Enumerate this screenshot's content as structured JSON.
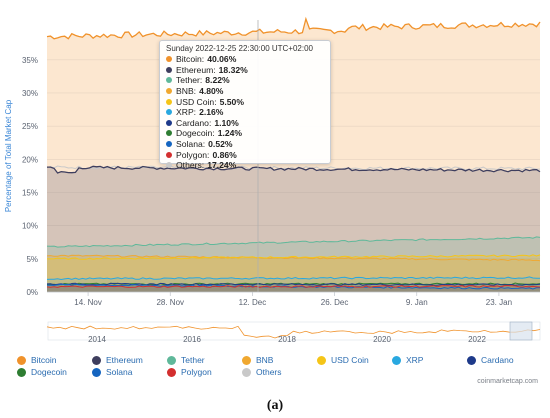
{
  "chart_data": {
    "type": "area",
    "ylabel": "Percentage of Total Market Cap",
    "ylim": [
      0,
      40
    ],
    "yticks": [
      "0%",
      "5%",
      "10%",
      "15%",
      "20%",
      "25%",
      "30%",
      "35%"
    ],
    "x_tick_labels": [
      "14. Nov",
      "28. Nov",
      "12. Dec",
      "26. Dec",
      "9. Jan",
      "23. Jan"
    ],
    "x_range": [
      "2022-11-07",
      "2023-01-30"
    ],
    "stacked": true,
    "series": [
      {
        "name": "Others",
        "color": "#c9c9c9",
        "values_start_end": [
          18.8,
          18.6
        ]
      },
      {
        "name": "Polygon",
        "color": "#d32f2f",
        "values_start_end": [
          0.8,
          0.86
        ]
      },
      {
        "name": "Solana",
        "color": "#1565c0",
        "values_start_end": [
          1.1,
          0.52
        ]
      },
      {
        "name": "Dogecoin",
        "color": "#2e7d32",
        "values_start_end": [
          1.2,
          1.24
        ]
      },
      {
        "name": "Cardano",
        "color": "#1e3a8a",
        "values_start_end": [
          1.2,
          1.1
        ]
      },
      {
        "name": "XRP",
        "color": "#29a8e0",
        "values_start_end": [
          2.0,
          2.16
        ]
      },
      {
        "name": "USD Coin",
        "color": "#f5c518",
        "values_start_end": [
          5.0,
          5.5
        ]
      },
      {
        "name": "BNB",
        "color": "#f0a830",
        "values_start_end": [
          5.5,
          4.8
        ]
      },
      {
        "name": "Tether",
        "color": "#5fb89a",
        "values_start_end": [
          6.8,
          8.22
        ]
      },
      {
        "name": "Ethereum",
        "color": "#3e3e5e",
        "values_start_end": [
          18.8,
          18.32
        ]
      },
      {
        "name": "Bitcoin",
        "color": "#f0922b",
        "values_start_end": [
          38.5,
          40.06
        ]
      }
    ],
    "tooltip": {
      "title": "Sunday 2022-12-25 22:30:00 UTC+02:00",
      "rows": [
        {
          "name": "Bitcoin",
          "value": "40.06%",
          "color": "#f0922b"
        },
        {
          "name": "Ethereum",
          "value": "18.32%",
          "color": "#3e3e5e"
        },
        {
          "name": "Tether",
          "value": "8.22%",
          "color": "#5fb89a"
        },
        {
          "name": "BNB",
          "value": "4.80%",
          "color": "#f0a830"
        },
        {
          "name": "USD Coin",
          "value": "5.50%",
          "color": "#f5c518"
        },
        {
          "name": "XRP",
          "value": "2.16%",
          "color": "#29a8e0"
        },
        {
          "name": "Cardano",
          "value": "1.10%",
          "color": "#1e3a8a"
        },
        {
          "name": "Dogecoin",
          "value": "1.24%",
          "color": "#2e7d32"
        },
        {
          "name": "Solana",
          "value": "0.52%",
          "color": "#1565c0"
        },
        {
          "name": "Polygon",
          "value": "0.86%",
          "color": "#d32f2f"
        },
        {
          "name": "Others",
          "value": "17.24%",
          "color": "#c9c9c9"
        }
      ]
    },
    "navigator": {
      "year_labels": [
        "2014",
        "2016",
        "2018",
        "2020",
        "2022"
      ]
    },
    "legend": [
      {
        "name": "Bitcoin",
        "color": "#f0922b"
      },
      {
        "name": "Ethereum",
        "color": "#3e3e5e"
      },
      {
        "name": "Tether",
        "color": "#5fb89a"
      },
      {
        "name": "BNB",
        "color": "#f0a830"
      },
      {
        "name": "USD Coin",
        "color": "#f5c518"
      },
      {
        "name": "XRP",
        "color": "#29a8e0"
      },
      {
        "name": "Cardano",
        "color": "#1e3a8a"
      },
      {
        "name": "Dogecoin",
        "color": "#2e7d32"
      },
      {
        "name": "Solana",
        "color": "#1565c0"
      },
      {
        "name": "Polygon",
        "color": "#d32f2f"
      },
      {
        "name": "Others",
        "color": "#c9c9c9"
      }
    ]
  },
  "brand": "coinmarketcap.com",
  "caption": "(a)"
}
